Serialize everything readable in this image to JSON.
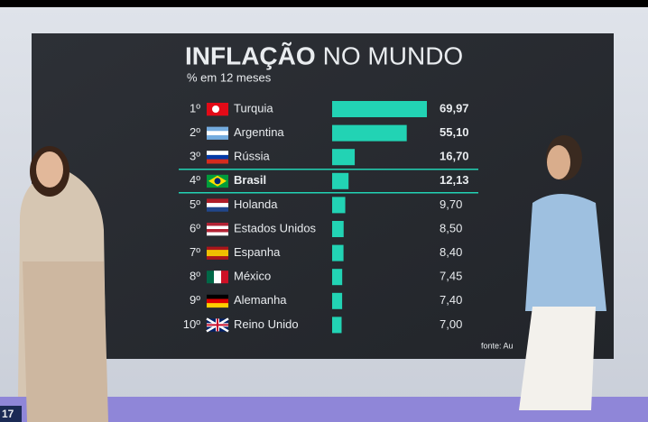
{
  "chart_data": {
    "type": "bar",
    "title_bold": "INFLAÇÃO",
    "title_light": "NO MUNDO",
    "subtitle": "% em 12 meses",
    "ranks": [
      "1º",
      "2º",
      "3º",
      "4º",
      "5º",
      "6º",
      "7º",
      "8º",
      "9º",
      "10º"
    ],
    "categories": [
      "Turquia",
      "Argentina",
      "Rússia",
      "Brasil",
      "Holanda",
      "Estados Unidos",
      "Espanha",
      "México",
      "Alemanha",
      "Reino Unido"
    ],
    "values": [
      69.97,
      55.1,
      16.7,
      12.13,
      9.7,
      8.5,
      8.4,
      7.45,
      7.4,
      7.0
    ],
    "value_labels": [
      "69,97",
      "55,10",
      "16,70",
      "12,13",
      "9,70",
      "8,50",
      "8,40",
      "7,45",
      "7,40",
      "7,00"
    ],
    "color": "#22d3b4",
    "highlight_category": "Brasil",
    "source": "fonte: Au",
    "corner_label": "17"
  }
}
